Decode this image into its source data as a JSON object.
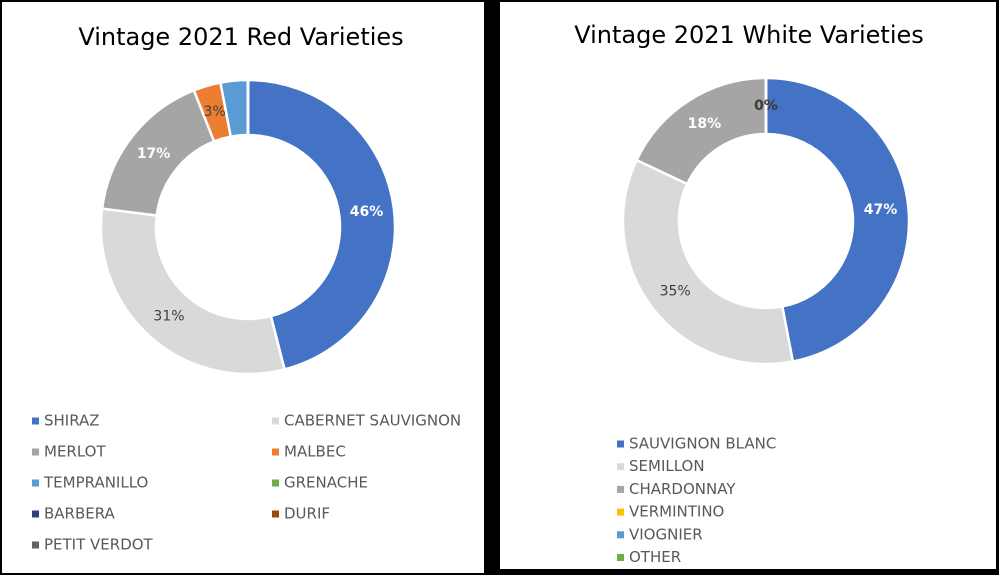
{
  "chart_data": [
    {
      "type": "donut",
      "title": "Vintage 2021 Red Varieties",
      "categories": [
        "SHIRAZ",
        "CABERNET SAUVIGNON",
        "MERLOT",
        "MALBEC",
        "TEMPRANILLO",
        "GRENACHE",
        "BARBERA",
        "DURIF",
        "PETIT VERDOT"
      ],
      "values": [
        46,
        31,
        17,
        3,
        3,
        0,
        0,
        0,
        0
      ],
      "value_labels": [
        "46%",
        "31%",
        "17%",
        "3%",
        null,
        null,
        null,
        null,
        null
      ],
      "colors": [
        "#4472c4",
        "#d9d9d9",
        "#a5a5a5",
        "#ed7d31",
        "#5b9bd5",
        "#70ad47",
        "#264478",
        "#9e480e",
        "#636363"
      ]
    },
    {
      "type": "donut",
      "title": "Vintage 2021 White Varieties",
      "categories": [
        "SAUVIGNON BLANC",
        "SEMILLON",
        "CHARDONNAY",
        "VERMINTINO",
        "VIOGNIER",
        "OTHER"
      ],
      "values": [
        47,
        35,
        18,
        0,
        0,
        0
      ],
      "value_labels": [
        "47%",
        "35%",
        "18%",
        "0%",
        "0%",
        "0%"
      ],
      "colors": [
        "#4472c4",
        "#d9d9d9",
        "#a5a5a5",
        "#ffc000",
        "#5b9bd5",
        "#70ad47"
      ]
    }
  ]
}
